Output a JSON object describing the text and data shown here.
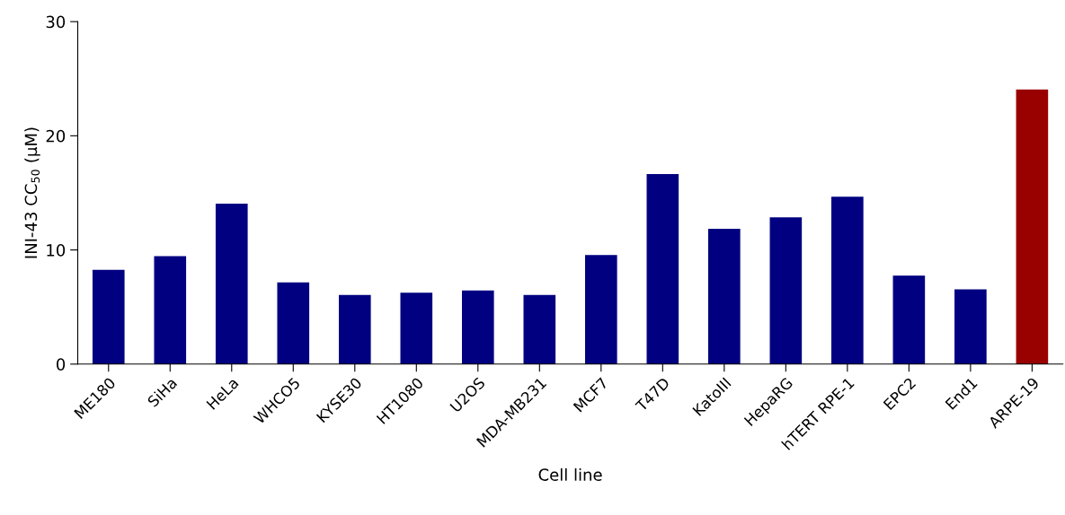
{
  "chart_data": {
    "type": "bar",
    "xlabel": "Cell line",
    "ylabel": "INI-43 CC$_{50}$ (μM)",
    "categories": [
      "ME180",
      "SiHa",
      "HeLa",
      "WHCO5",
      "KYSE30",
      "HT1080",
      "U2OS",
      "MDA-MB231",
      "MCF7",
      "T47D",
      "KatoIII",
      "HepaRG",
      "hTERT RPE-1",
      "EPC2",
      "End1",
      "ARPE-19"
    ],
    "values": [
      8.2,
      9.4,
      14.0,
      7.1,
      6.0,
      6.2,
      6.4,
      6.0,
      9.5,
      16.6,
      11.8,
      12.8,
      14.6,
      7.7,
      6.5,
      24.0
    ],
    "colors": [
      "#000080",
      "#000080",
      "#000080",
      "#000080",
      "#000080",
      "#000080",
      "#000080",
      "#000080",
      "#000080",
      "#000080",
      "#000080",
      "#000080",
      "#000080",
      "#000080",
      "#000080",
      "#990000"
    ],
    "ylim": [
      0,
      30
    ],
    "yticks": [
      0,
      10,
      20,
      30
    ],
    "grid": false,
    "legend": false
  }
}
